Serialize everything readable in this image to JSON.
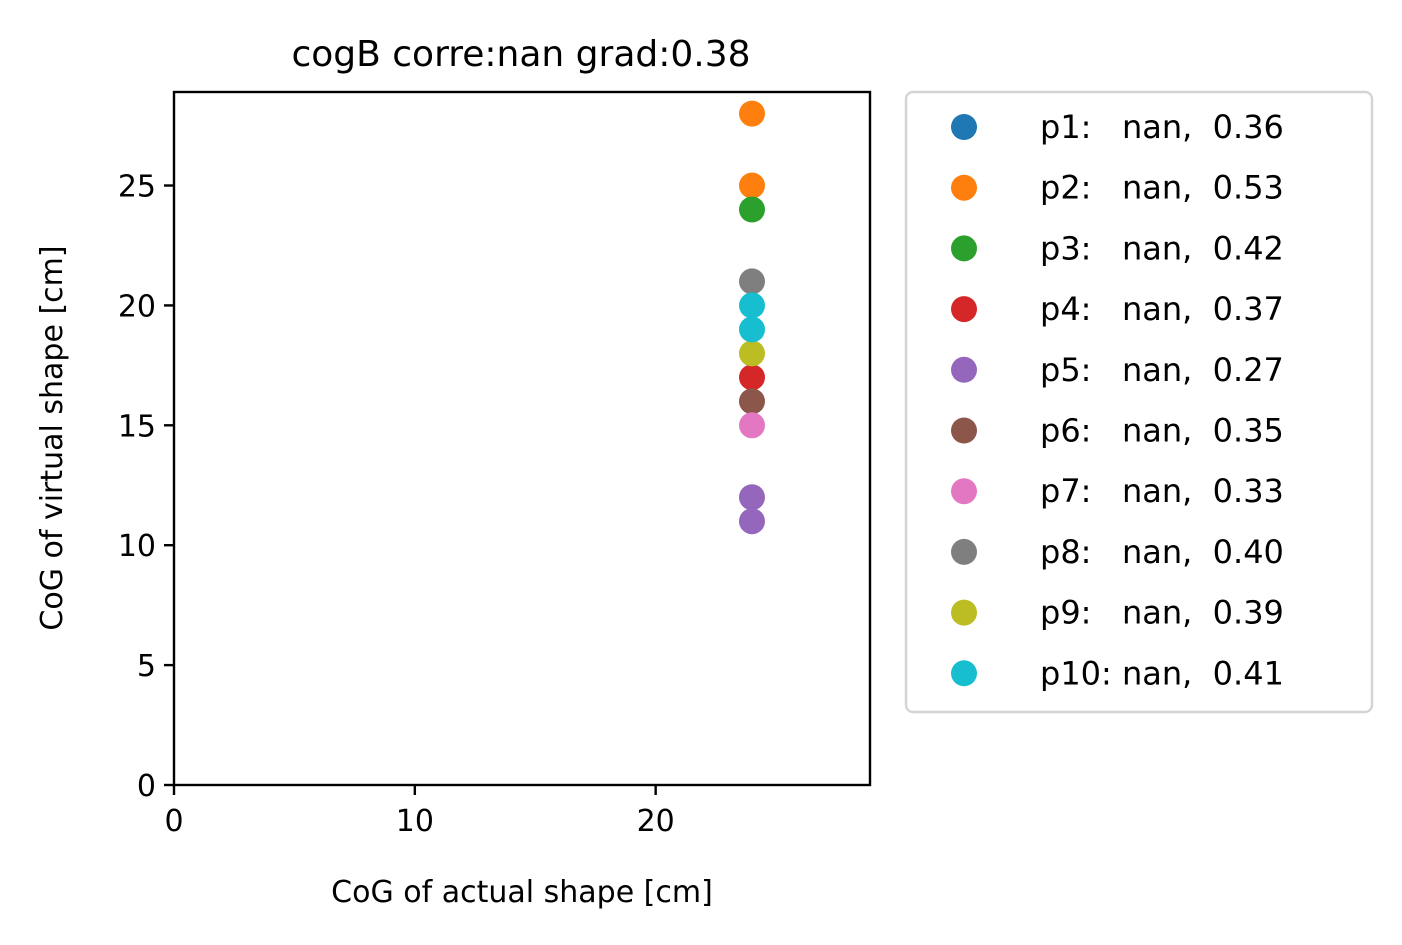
{
  "chart_data": {
    "type": "scatter",
    "title": "cogB corre:nan grad:0.38",
    "xlabel": "CoG of actual shape [cm]",
    "ylabel": "CoG of virtual shape [cm]",
    "xlim": [
      0,
      28.9
    ],
    "ylim": [
      0,
      28.9
    ],
    "xticks": [
      0,
      10,
      20
    ],
    "yticks": [
      0,
      5,
      10,
      15,
      20,
      25
    ],
    "grid": false,
    "legend_position": "outside-right",
    "series": [
      {
        "name": "p1:   nan,  0.36",
        "color": "#1f77b4",
        "points": []
      },
      {
        "name": "p2:   nan,  0.53",
        "color": "#ff7f0e",
        "points": [
          {
            "x": 24,
            "y": 28
          },
          {
            "x": 24,
            "y": 25
          }
        ]
      },
      {
        "name": "p3:   nan,  0.42",
        "color": "#2ca02c",
        "points": [
          {
            "x": 24,
            "y": 24
          }
        ]
      },
      {
        "name": "p4:   nan,  0.37",
        "color": "#d62728",
        "points": [
          {
            "x": 24,
            "y": 17
          }
        ]
      },
      {
        "name": "p5:   nan,  0.27",
        "color": "#9467bd",
        "points": [
          {
            "x": 24,
            "y": 12
          },
          {
            "x": 24,
            "y": 11
          }
        ]
      },
      {
        "name": "p6:   nan,  0.35",
        "color": "#8c564b",
        "points": [
          {
            "x": 24,
            "y": 16
          }
        ]
      },
      {
        "name": "p7:   nan,  0.33",
        "color": "#e377c2",
        "points": [
          {
            "x": 24,
            "y": 15
          }
        ]
      },
      {
        "name": "p8:   nan,  0.40",
        "color": "#7f7f7f",
        "points": [
          {
            "x": 24,
            "y": 21
          }
        ]
      },
      {
        "name": "p9:   nan,  0.39",
        "color": "#bcbd22",
        "points": [
          {
            "x": 24,
            "y": 18
          }
        ]
      },
      {
        "name": "p10: nan,  0.41",
        "color": "#17becf",
        "points": [
          {
            "x": 24,
            "y": 20
          },
          {
            "x": 24,
            "y": 19
          }
        ]
      }
    ]
  }
}
